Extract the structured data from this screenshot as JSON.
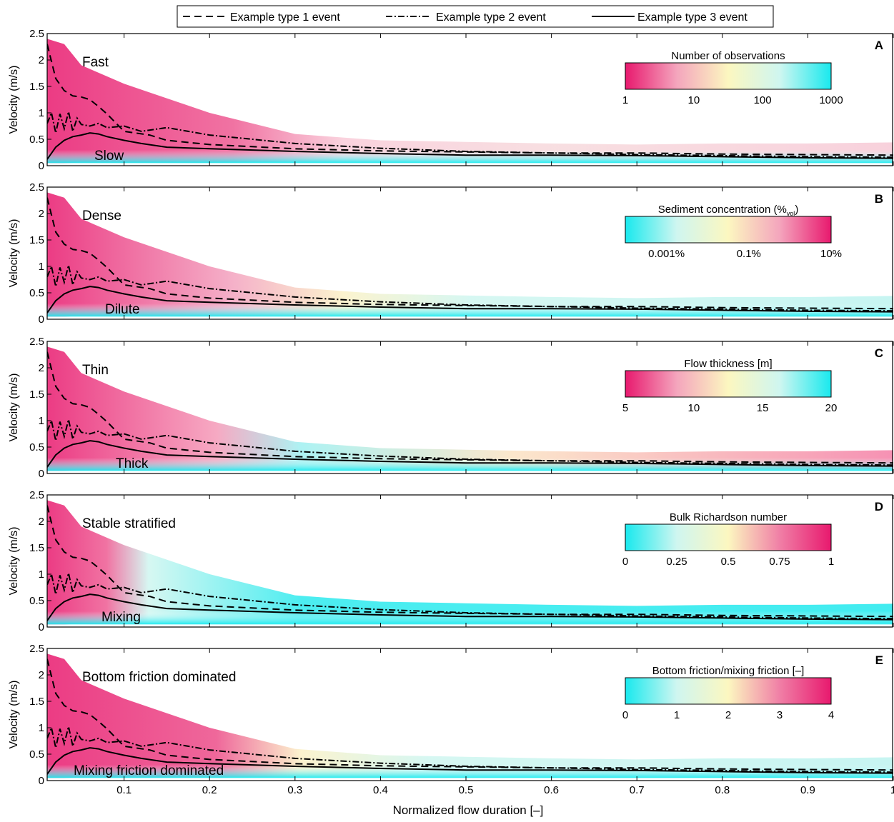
{
  "figure": {
    "legend": [
      {
        "label": "Example type 1 event",
        "style": "dashed"
      },
      {
        "label": "Example type 2 event",
        "style": "dashdot"
      },
      {
        "label": "Example type 3 event",
        "style": "solid"
      }
    ],
    "xlabel": "Normalized flow duration [–]",
    "ylabel": "Velocity (m/s)"
  },
  "chart_data": [
    {
      "type": "heatmap",
      "panel": "A",
      "xlim": [
        0.01,
        1
      ],
      "ylim": [
        0,
        2.5
      ],
      "xticks": [
        0.1,
        0.2,
        0.3,
        0.4,
        0.5,
        0.6,
        0.7,
        0.8,
        0.9,
        1
      ],
      "xtick_labels": [
        "0.1",
        "0.2",
        "0.3",
        "0.4",
        "0.5",
        "0.6",
        "0.7",
        "0.8",
        "0.9",
        "1"
      ],
      "yticks": [
        0,
        0.5,
        1,
        1.5,
        2,
        2.5
      ],
      "ytick_labels": [
        "0",
        "0.5",
        "1",
        "1.5",
        "2",
        "2.5"
      ],
      "annotation_top": "Fast",
      "annotation_bottom": "Slow",
      "colorbar": {
        "title": "Number of observations",
        "ticks": [
          "1",
          "10",
          "100",
          "1000"
        ],
        "tick_positions": [
          0,
          0.333,
          0.667,
          1
        ],
        "colors": [
          "#e8196e",
          "#f4a5bd",
          "#fcf7c0",
          "#cff6f0",
          "#19e9ee"
        ]
      }
    },
    {
      "type": "heatmap",
      "panel": "B",
      "xlim": [
        0.01,
        1
      ],
      "ylim": [
        0,
        2.5
      ],
      "xticks": [
        0.1,
        0.2,
        0.3,
        0.4,
        0.5,
        0.6,
        0.7,
        0.8,
        0.9,
        1
      ],
      "xtick_labels": [
        "0.1",
        "0.2",
        "0.3",
        "0.4",
        "0.5",
        "0.6",
        "0.7",
        "0.8",
        "0.9",
        "1"
      ],
      "yticks": [
        0,
        0.5,
        1,
        1.5,
        2,
        2.5
      ],
      "ytick_labels": [
        "0",
        "0.5",
        "1",
        "1.5",
        "2",
        "2.5"
      ],
      "annotation_top": "Dense",
      "annotation_bottom": "Dilute",
      "colorbar": {
        "title": "Sediment concentration (%",
        "title_sub": "vol",
        "title_end": ")",
        "ticks": [
          "0.001%",
          "0.1%",
          "10%"
        ],
        "tick_positions": [
          0.2,
          0.6,
          1
        ],
        "colors": [
          "#19e9ee",
          "#cff6f0",
          "#fcf7c0",
          "#f4a5bd",
          "#e8196e"
        ]
      }
    },
    {
      "type": "heatmap",
      "panel": "C",
      "xlim": [
        0.01,
        1
      ],
      "ylim": [
        0,
        2.5
      ],
      "xticks": [
        0.1,
        0.2,
        0.3,
        0.4,
        0.5,
        0.6,
        0.7,
        0.8,
        0.9,
        1
      ],
      "xtick_labels": [
        "0.1",
        "0.2",
        "0.3",
        "0.4",
        "0.5",
        "0.6",
        "0.7",
        "0.8",
        "0.9",
        "1"
      ],
      "yticks": [
        0,
        0.5,
        1,
        1.5,
        2,
        2.5
      ],
      "ytick_labels": [
        "0",
        "0.5",
        "1",
        "1.5",
        "2",
        "2.5"
      ],
      "annotation_top": "Thin",
      "annotation_bottom": "Thick",
      "colorbar": {
        "title": "Flow thickness [m]",
        "ticks": [
          "5",
          "10",
          "15",
          "20"
        ],
        "tick_positions": [
          0,
          0.333,
          0.667,
          1
        ],
        "colors": [
          "#e8196e",
          "#f4a5bd",
          "#fcf7c0",
          "#cff6f0",
          "#19e9ee"
        ]
      }
    },
    {
      "type": "heatmap",
      "panel": "D",
      "xlim": [
        0.01,
        1
      ],
      "ylim": [
        0,
        2.5
      ],
      "xticks": [
        0.1,
        0.2,
        0.3,
        0.4,
        0.5,
        0.6,
        0.7,
        0.8,
        0.9,
        1
      ],
      "xtick_labels": [
        "0.1",
        "0.2",
        "0.3",
        "0.4",
        "0.5",
        "0.6",
        "0.7",
        "0.8",
        "0.9",
        "1"
      ],
      "yticks": [
        0,
        0.5,
        1,
        1.5,
        2,
        2.5
      ],
      "ytick_labels": [
        "0",
        "0.5",
        "1",
        "1.5",
        "2",
        "2.5"
      ],
      "annotation_top": "Stable stratified",
      "annotation_bottom": "Mixing",
      "colorbar": {
        "title": "Bulk Richardson number",
        "ticks": [
          "0",
          "0.25",
          "0.5",
          "0.75",
          "1"
        ],
        "tick_positions": [
          0,
          0.25,
          0.5,
          0.75,
          1
        ],
        "colors": [
          "#19e9ee",
          "#cff6f0",
          "#fcf7c0",
          "#f07fa6",
          "#e8196e"
        ]
      }
    },
    {
      "type": "heatmap",
      "panel": "E",
      "xlim": [
        0.01,
        1
      ],
      "ylim": [
        0,
        2.5
      ],
      "xticks": [
        0.1,
        0.2,
        0.3,
        0.4,
        0.5,
        0.6,
        0.7,
        0.8,
        0.9,
        1
      ],
      "xtick_labels": [
        "0.1",
        "0.2",
        "0.3",
        "0.4",
        "0.5",
        "0.6",
        "0.7",
        "0.8",
        "0.9",
        "1"
      ],
      "yticks": [
        0,
        0.5,
        1,
        1.5,
        2,
        2.5
      ],
      "ytick_labels": [
        "0",
        "0.5",
        "1",
        "1.5",
        "2",
        "2.5"
      ],
      "annotation_top": "Bottom friction dominated",
      "annotation_bottom": "Mixing friction dominated",
      "colorbar": {
        "title": "Bottom friction/mixing friction [–]",
        "ticks": [
          "0",
          "1",
          "2",
          "3",
          "4"
        ],
        "tick_positions": [
          0,
          0.25,
          0.5,
          0.75,
          1
        ],
        "colors": [
          "#19e9ee",
          "#cff6f0",
          "#fcf7c0",
          "#f07fa6",
          "#e8196e"
        ]
      }
    }
  ],
  "event_lines": {
    "type1": {
      "x": [
        0.01,
        0.02,
        0.03,
        0.04,
        0.05,
        0.06,
        0.07,
        0.08,
        0.1,
        0.13,
        0.15,
        0.2,
        0.3,
        0.4,
        0.5,
        0.6,
        0.7,
        0.8,
        0.9,
        1.0
      ],
      "y": [
        2.3,
        1.65,
        1.42,
        1.32,
        1.3,
        1.25,
        1.12,
        0.98,
        0.65,
        0.58,
        0.48,
        0.4,
        0.32,
        0.28,
        0.26,
        0.24,
        0.24,
        0.22,
        0.21,
        0.2
      ]
    },
    "type2": {
      "x": [
        0.01,
        0.015,
        0.02,
        0.025,
        0.03,
        0.035,
        0.04,
        0.045,
        0.05,
        0.06,
        0.07,
        0.08,
        0.1,
        0.12,
        0.15,
        0.2,
        0.25,
        0.3,
        0.4,
        0.5,
        0.6,
        0.7,
        0.8,
        0.9,
        1.0
      ],
      "y": [
        0.8,
        1.0,
        0.62,
        0.98,
        0.7,
        1.02,
        0.65,
        0.9,
        0.78,
        0.75,
        0.8,
        0.72,
        0.75,
        0.65,
        0.72,
        0.58,
        0.5,
        0.42,
        0.33,
        0.27,
        0.24,
        0.21,
        0.19,
        0.17,
        0.16
      ]
    },
    "type3": {
      "x": [
        0.01,
        0.02,
        0.03,
        0.04,
        0.05,
        0.06,
        0.07,
        0.08,
        0.1,
        0.12,
        0.15,
        0.2,
        0.3,
        0.4,
        0.5,
        0.6,
        0.7,
        0.8,
        0.9,
        1.0
      ],
      "y": [
        0.12,
        0.35,
        0.48,
        0.55,
        0.58,
        0.62,
        0.6,
        0.55,
        0.48,
        0.42,
        0.35,
        0.32,
        0.27,
        0.23,
        0.2,
        0.2,
        0.19,
        0.17,
        0.15,
        0.14
      ]
    }
  },
  "density_cloud": {
    "x": [
      0.01,
      0.03,
      0.05,
      0.1,
      0.2,
      0.3,
      0.4,
      0.5,
      0.6,
      0.7,
      0.8,
      0.9,
      1.0
    ],
    "upper": [
      2.4,
      2.3,
      1.9,
      1.55,
      1.0,
      0.6,
      0.48,
      0.45,
      0.42,
      0.4,
      0.42,
      0.42,
      0.44
    ],
    "lower": [
      0.05,
      0.05,
      0.06,
      0.06,
      0.06,
      0.07,
      0.07,
      0.08,
      0.08,
      0.08,
      0.08,
      0.08,
      0.08
    ]
  }
}
